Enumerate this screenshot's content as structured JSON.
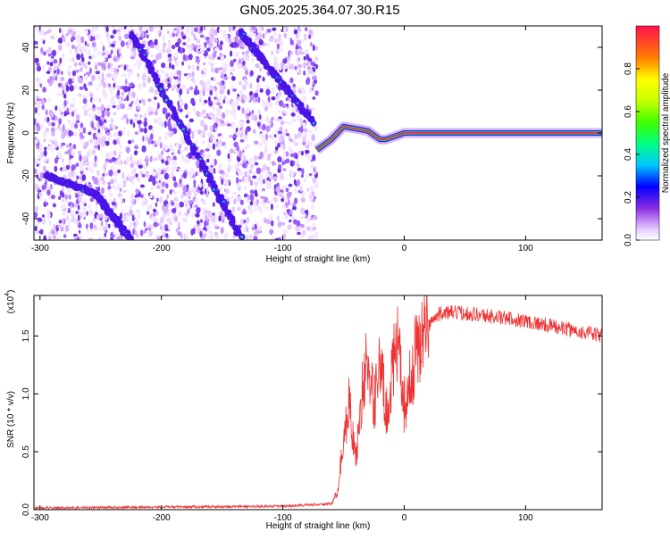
{
  "title": "GN05.2025.364.07.30.R15",
  "chart_data": [
    {
      "type": "heatmap",
      "xlabel": "Height of straight line (km)",
      "ylabel": "Frequency (Hz)",
      "xlim": [
        -305,
        163
      ],
      "ylim": [
        -50,
        50
      ],
      "xticks": [
        -300,
        -200,
        -100,
        0,
        100
      ],
      "yticks": [
        -40,
        -20,
        0,
        20,
        40
      ],
      "noise_region_x": [
        -305,
        -72
      ],
      "diagonal_tracks": [
        {
          "x_start": -225,
          "y_start": 47,
          "x_end": -135,
          "y_end": -48
        },
        {
          "x_start": -135,
          "y_start": 47,
          "x_end": -75,
          "y_end": 5
        },
        {
          "x_start": -295,
          "y_start": -20,
          "x_end": -255,
          "y_end": -28
        },
        {
          "x_start": -255,
          "y_start": -28,
          "x_end": -225,
          "y_end": -50
        }
      ],
      "carrier_line": {
        "points": [
          [
            -72,
            -8
          ],
          [
            -60,
            -3
          ],
          [
            -50,
            3
          ],
          [
            -40,
            2
          ],
          [
            -30,
            1
          ],
          [
            -25,
            -1
          ],
          [
            -20,
            -3
          ],
          [
            -15,
            -3
          ],
          [
            -10,
            -2
          ],
          [
            -5,
            -1
          ],
          [
            0,
            0
          ],
          [
            10,
            0
          ],
          [
            40,
            0
          ],
          [
            100,
            0
          ],
          [
            163,
            0
          ]
        ],
        "frequency": 0
      },
      "colorbar": {
        "label": "Normalized spectral amplitude",
        "ticks": [
          "0.0",
          "0.2",
          "0.4",
          "0.6",
          "0.8"
        ],
        "range": [
          0,
          1
        ]
      }
    },
    {
      "type": "line",
      "xlabel": "Height of straight line (km)",
      "ylabel": "SNR (10 * v/v)",
      "exponent": "(x10",
      "exponent_power": "4",
      "xlim": [
        -305,
        163
      ],
      "ylim": [
        0,
        18500
      ],
      "xticks": [
        -300,
        -200,
        -100,
        0,
        100
      ],
      "yticks": [
        0,
        5000,
        10000,
        15000
      ],
      "ytick_labels": [
        "0.0",
        "0.5",
        "1.0",
        "1.5"
      ],
      "color": "#ee3333",
      "envelope": [
        [
          -305,
          150
        ],
        [
          -100,
          300
        ],
        [
          -60,
          500
        ],
        [
          -55,
          1500
        ],
        [
          -50,
          6000
        ],
        [
          -45,
          9500
        ],
        [
          -40,
          4000
        ],
        [
          -35,
          10000
        ],
        [
          -30,
          13000
        ],
        [
          -25,
          9000
        ],
        [
          -20,
          13500
        ],
        [
          -15,
          8000
        ],
        [
          -10,
          12000
        ],
        [
          -5,
          14000
        ],
        [
          0,
          9000
        ],
        [
          5,
          11000
        ],
        [
          10,
          14000
        ],
        [
          20,
          16000
        ],
        [
          30,
          17000
        ],
        [
          50,
          17000
        ],
        [
          100,
          16300
        ],
        [
          163,
          15000
        ]
      ]
    }
  ]
}
